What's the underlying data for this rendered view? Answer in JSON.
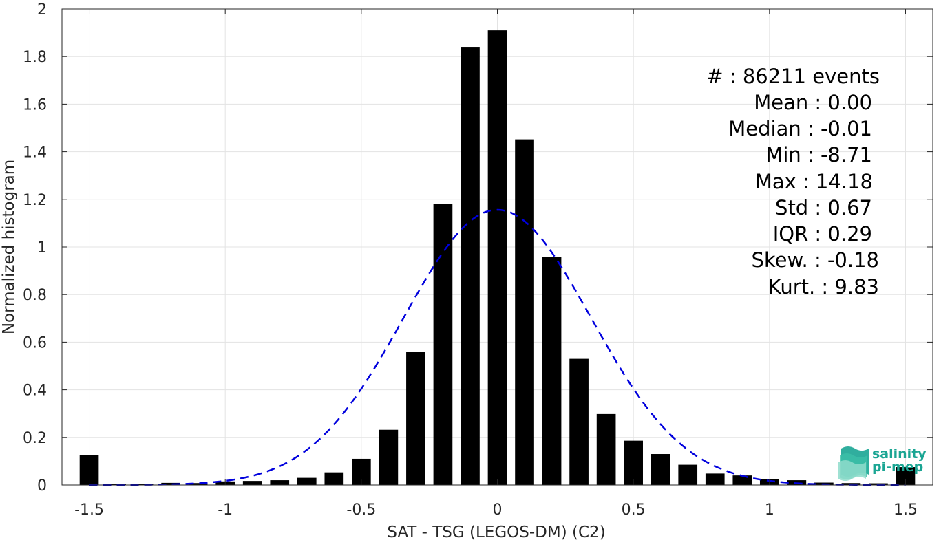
{
  "chart_data": {
    "type": "bar",
    "xlabel": "SAT - TSG (LEGOS-DM) (C2)",
    "ylabel": "Normalized histogram",
    "xlim": [
      -1.6,
      1.6
    ],
    "ylim": [
      0,
      2
    ],
    "xticks": [
      -1.5,
      -1,
      -0.5,
      0,
      0.5,
      1,
      1.5
    ],
    "xtick_labels": [
      "-1.5",
      "-1",
      "-0.5",
      "0",
      "0.5",
      "1",
      "1.5"
    ],
    "yticks": [
      0,
      0.2,
      0.4,
      0.6,
      0.8,
      1,
      1.2,
      1.4,
      1.6,
      1.8,
      2
    ],
    "ytick_labels": [
      "0",
      "0.2",
      "0.4",
      "0.6",
      "0.8",
      "1",
      "1.2",
      "1.4",
      "1.6",
      "1.8",
      "2"
    ],
    "grid": true,
    "bar_width": 0.07,
    "bar_color": "#000000",
    "bins": [
      -1.5,
      -1.4,
      -1.3,
      -1.2,
      -1.1,
      -1.0,
      -0.9,
      -0.8,
      -0.7,
      -0.6,
      -0.5,
      -0.4,
      -0.3,
      -0.2,
      -0.1,
      0.0,
      0.1,
      0.2,
      0.3,
      0.4,
      0.5,
      0.6,
      0.7,
      0.8,
      0.9,
      1.0,
      1.1,
      1.2,
      1.3,
      1.4,
      1.5
    ],
    "values": [
      0.125,
      0.004,
      0.005,
      0.009,
      0.008,
      0.015,
      0.017,
      0.02,
      0.03,
      0.053,
      0.11,
      0.232,
      0.56,
      1.182,
      1.838,
      1.91,
      1.452,
      0.957,
      0.53,
      0.298,
      0.186,
      0.13,
      0.085,
      0.048,
      0.04,
      0.025,
      0.02,
      0.01,
      0.008,
      0.007,
      0.075
    ],
    "fit": {
      "type": "gaussian",
      "mean": 0.0,
      "std": 0.345,
      "peak": 1.156,
      "color": "#0000dd",
      "style": "dashed"
    },
    "stats": {
      "count_line": "#  : 86211 events",
      "mean_line": "Mean : 0.00",
      "median_line": "Median : -0.01",
      "min_line": "Min : -8.71",
      "max_line": "Max : 14.18",
      "std_line": "Std : 0.67",
      "iqr_line": "IQR : 0.29",
      "skew_line": "Skew. : -0.18",
      "kurt_line": "Kurt. : 9.83"
    }
  },
  "logo": {
    "line1": "salinity",
    "line2": "pi-mep",
    "color": "#1aa593"
  }
}
